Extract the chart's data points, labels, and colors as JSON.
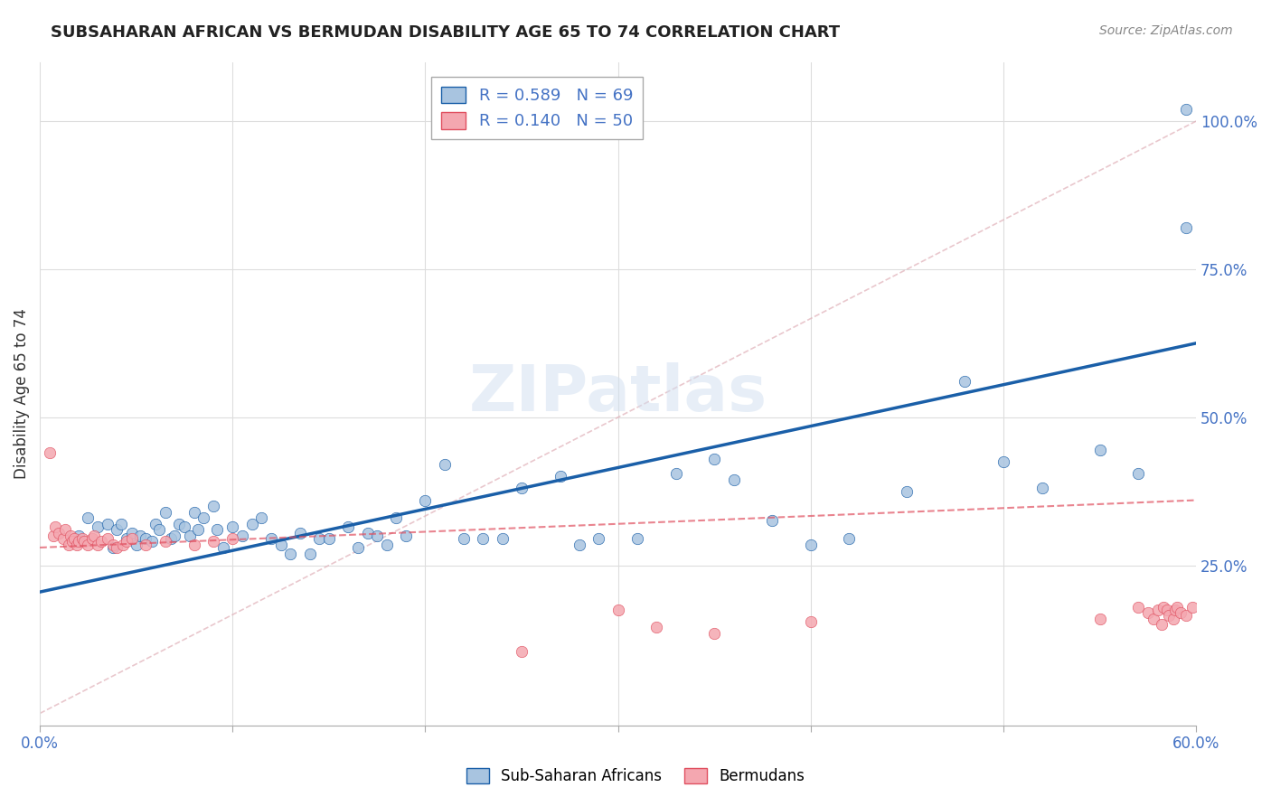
{
  "title": "SUBSAHARAN AFRICAN VS BERMUDAN DISABILITY AGE 65 TO 74 CORRELATION CHART",
  "source": "Source: ZipAtlas.com",
  "xlabel": "",
  "ylabel": "Disability Age 65 to 74",
  "xlim": [
    0.0,
    0.6
  ],
  "ylim": [
    -0.02,
    1.1
  ],
  "xticks": [
    0.0,
    0.1,
    0.2,
    0.3,
    0.4,
    0.5,
    0.6
  ],
  "xticklabels": [
    "0.0%",
    "",
    "",
    "",
    "",
    "",
    "60.0%"
  ],
  "yticks": [
    0.25,
    0.5,
    0.75,
    1.0
  ],
  "yticklabels": [
    "25.0%",
    "50.0%",
    "75.0%",
    "100.0%"
  ],
  "legend1_R": "0.589",
  "legend1_N": "69",
  "legend2_R": "0.140",
  "legend2_N": "50",
  "blue_color": "#a8c4e0",
  "blue_line_color": "#1a5fa8",
  "pink_color": "#f4a7b0",
  "pink_line_color": "#e05060",
  "watermark": "ZIPatlas",
  "blue_scatter_x": [
    0.02,
    0.025,
    0.03,
    0.035,
    0.038,
    0.04,
    0.042,
    0.045,
    0.048,
    0.05,
    0.052,
    0.055,
    0.058,
    0.06,
    0.062,
    0.065,
    0.068,
    0.07,
    0.072,
    0.075,
    0.078,
    0.08,
    0.082,
    0.085,
    0.09,
    0.092,
    0.095,
    0.1,
    0.105,
    0.11,
    0.115,
    0.12,
    0.125,
    0.13,
    0.135,
    0.14,
    0.145,
    0.15,
    0.16,
    0.165,
    0.17,
    0.175,
    0.18,
    0.185,
    0.19,
    0.2,
    0.21,
    0.22,
    0.23,
    0.24,
    0.25,
    0.27,
    0.28,
    0.29,
    0.31,
    0.33,
    0.35,
    0.36,
    0.38,
    0.4,
    0.42,
    0.45,
    0.48,
    0.5,
    0.52,
    0.55,
    0.57,
    0.595,
    0.595
  ],
  "blue_scatter_y": [
    0.3,
    0.33,
    0.315,
    0.32,
    0.28,
    0.31,
    0.32,
    0.295,
    0.305,
    0.285,
    0.3,
    0.295,
    0.29,
    0.32,
    0.31,
    0.34,
    0.295,
    0.3,
    0.32,
    0.315,
    0.3,
    0.34,
    0.31,
    0.33,
    0.35,
    0.31,
    0.28,
    0.315,
    0.3,
    0.32,
    0.33,
    0.295,
    0.285,
    0.27,
    0.305,
    0.27,
    0.295,
    0.295,
    0.315,
    0.28,
    0.305,
    0.3,
    0.285,
    0.33,
    0.3,
    0.36,
    0.42,
    0.295,
    0.295,
    0.295,
    0.38,
    0.4,
    0.285,
    0.295,
    0.295,
    0.405,
    0.43,
    0.395,
    0.325,
    0.285,
    0.295,
    0.375,
    0.56,
    0.425,
    0.38,
    0.445,
    0.405,
    1.02,
    0.82
  ],
  "pink_scatter_x": [
    0.005,
    0.007,
    0.008,
    0.01,
    0.012,
    0.013,
    0.015,
    0.016,
    0.017,
    0.018,
    0.019,
    0.02,
    0.022,
    0.023,
    0.025,
    0.027,
    0.028,
    0.03,
    0.032,
    0.035,
    0.038,
    0.04,
    0.043,
    0.045,
    0.048,
    0.055,
    0.065,
    0.08,
    0.09,
    0.1,
    0.25,
    0.3,
    0.32,
    0.35,
    0.4,
    0.55,
    0.57,
    0.575,
    0.578,
    0.58,
    0.582,
    0.583,
    0.585,
    0.586,
    0.588,
    0.589,
    0.59,
    0.592,
    0.595,
    0.598
  ],
  "pink_scatter_y": [
    0.44,
    0.3,
    0.315,
    0.305,
    0.295,
    0.31,
    0.285,
    0.3,
    0.29,
    0.295,
    0.285,
    0.29,
    0.295,
    0.29,
    0.285,
    0.295,
    0.3,
    0.285,
    0.29,
    0.295,
    0.285,
    0.28,
    0.285,
    0.29,
    0.295,
    0.285,
    0.29,
    0.285,
    0.29,
    0.295,
    0.105,
    0.175,
    0.145,
    0.135,
    0.155,
    0.16,
    0.18,
    0.17,
    0.16,
    0.175,
    0.15,
    0.18,
    0.175,
    0.165,
    0.16,
    0.175,
    0.18,
    0.17,
    0.165,
    0.18
  ],
  "blue_line_x": [
    0.0,
    0.6
  ],
  "blue_line_y": [
    0.205,
    0.625
  ],
  "pink_line_x": [
    0.0,
    0.6
  ],
  "pink_line_y": [
    0.28,
    0.36
  ],
  "diag_line_x": [
    0.0,
    0.6
  ],
  "diag_line_y": [
    0.0,
    1.0
  ]
}
